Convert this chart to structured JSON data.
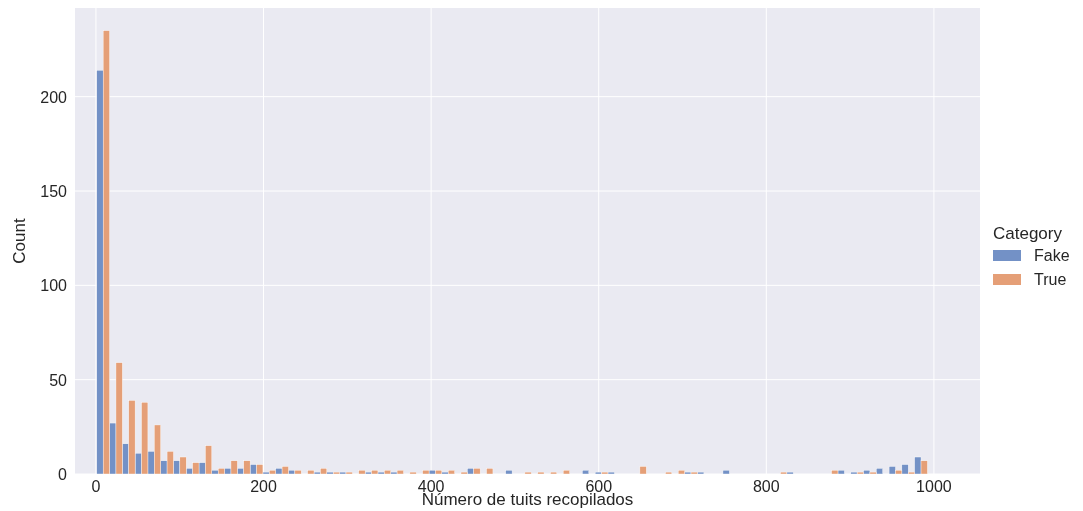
{
  "chart_data": {
    "type": "histogram",
    "xlabel": "Número de tuits recopilados",
    "ylabel": "Count",
    "legend_title": "Category",
    "legend": "right",
    "grid": true,
    "bins": [
      1,
      16.25,
      31.5,
      46.75,
      62,
      77.25,
      92.5,
      107.75,
      123,
      138.25,
      153.5,
      168.75,
      184,
      199.25,
      214.5,
      229.75,
      245,
      260.25,
      275.5,
      290.75,
      306,
      321.25,
      336.5,
      351.75,
      367,
      382.25,
      397.5,
      412.75,
      428,
      443.25,
      458.5,
      473.75,
      489,
      504.25,
      519.5,
      534.75,
      550,
      565.25,
      580.5,
      595.75,
      611,
      626.25,
      641.5,
      656.75,
      672,
      687.25,
      702.5,
      717.75,
      733,
      748.25,
      763.5,
      778.75,
      794,
      809.25,
      824.5,
      839.75,
      855,
      870.25,
      885.5,
      900.75,
      916,
      931.25,
      946.5,
      961.75,
      977,
      992.25
    ],
    "series": [
      {
        "name": "Fake",
        "color": "#7391c6",
        "values": [
          214,
          27,
          16,
          11,
          12,
          7,
          7,
          3,
          6,
          2,
          3,
          3,
          5,
          1,
          3,
          2,
          0,
          1,
          1,
          1,
          0,
          1,
          1,
          1,
          0,
          0,
          2,
          1,
          0,
          3,
          0,
          0,
          2,
          0,
          0,
          0,
          0,
          0,
          2,
          1,
          1,
          0,
          0,
          0,
          0,
          0,
          1,
          1,
          0,
          2,
          0,
          0,
          0,
          0,
          1,
          0,
          0,
          0,
          2,
          1,
          2,
          3,
          4,
          5,
          9
        ]
      },
      {
        "name": "True",
        "color": "#e59f77",
        "values": [
          235,
          59,
          39,
          38,
          26,
          12,
          9,
          6,
          15,
          3,
          7,
          7,
          5,
          2,
          4,
          2,
          2,
          3,
          1,
          1,
          2,
          2,
          2,
          2,
          1,
          2,
          2,
          2,
          1,
          3,
          3,
          0,
          0,
          1,
          1,
          1,
          2,
          0,
          0,
          1,
          0,
          0,
          4,
          0,
          1,
          2,
          1,
          0,
          0,
          0,
          0,
          0,
          0,
          1,
          0,
          0,
          0,
          2,
          0,
          1,
          1,
          0,
          2,
          1,
          7
        ]
      }
    ],
    "xlim": [
      -25,
      1055
    ],
    "xticks": [
      0,
      200,
      400,
      600,
      800,
      1000
    ],
    "ylim": [
      0,
      247
    ],
    "yticks": [
      0,
      50,
      100,
      150,
      200
    ]
  }
}
